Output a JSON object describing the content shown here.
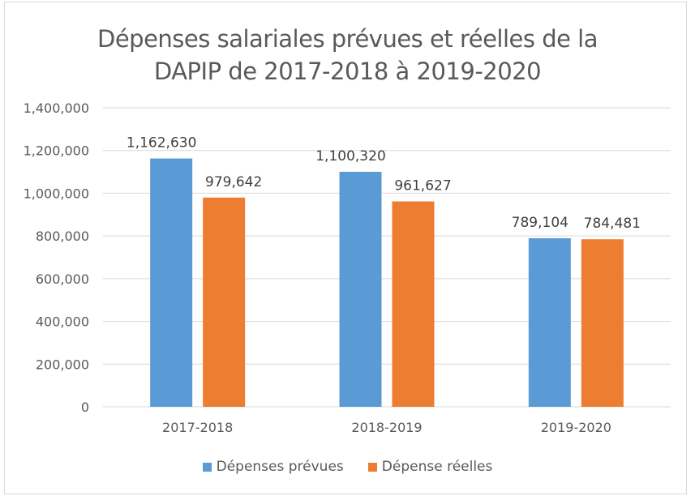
{
  "chart_data": {
    "type": "bar",
    "title": "Dépenses salariales prévues et réelles de la DAPIP de 2017-2018 à 2019-2020",
    "title_lines": [
      "Dépenses salariales prévues et réelles de la",
      "DAPIP de 2017-2018 à 2019-2020"
    ],
    "categories": [
      "2017-2018",
      "2018-2019",
      "2019-2020"
    ],
    "series": [
      {
        "name": "Dépenses prévues",
        "color": "#5b9bd5",
        "values": [
          1162630,
          1100320,
          789104
        ],
        "labels": [
          "1,162,630",
          "1,100,320",
          "789,104"
        ]
      },
      {
        "name": "Dépense réelles",
        "color": "#ed7d31",
        "values": [
          979642,
          961627,
          784481
        ],
        "labels": [
          "979,642",
          "961,627",
          "784,481"
        ]
      }
    ],
    "xlabel": "",
    "ylabel": "",
    "ylim": [
      0,
      1400000
    ],
    "yticks": [
      0,
      200000,
      400000,
      600000,
      800000,
      1000000,
      1200000,
      1400000
    ],
    "ytick_labels": [
      "0",
      "200,000",
      "400,000",
      "600,000",
      "800,000",
      "1,000,000",
      "1,200,000",
      "1,400,000"
    ],
    "grid": true,
    "legend_position": "bottom"
  }
}
